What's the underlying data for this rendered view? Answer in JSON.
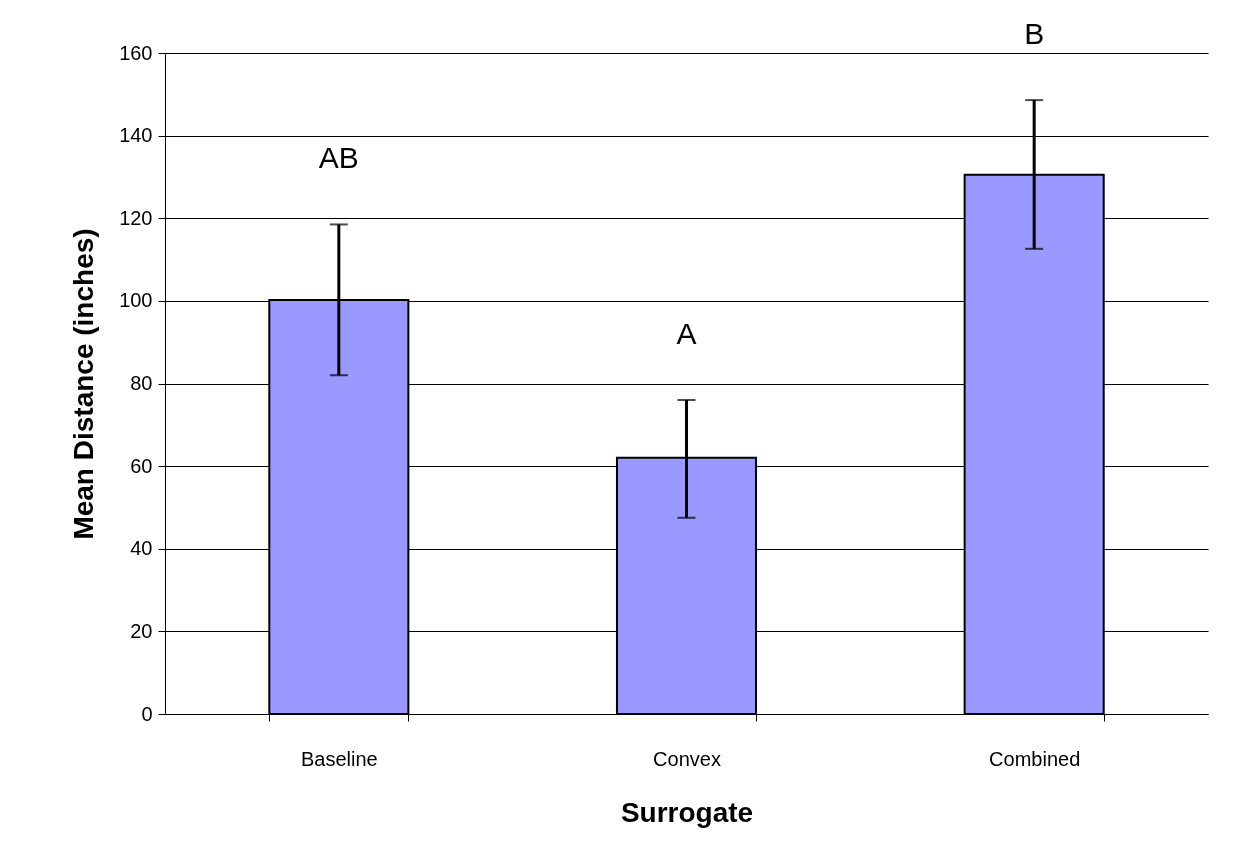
{
  "chart_data": {
    "type": "bar",
    "xlabel": "Surrogate",
    "ylabel": "Mean Distance (inches)",
    "categories": [
      "Baseline",
      "Convex",
      "Combined"
    ],
    "values": [
      100.2,
      62,
      130.5
    ],
    "color": "#9999ff",
    "errors": [
      [
        82,
        118.5
      ],
      [
        47.5,
        76
      ],
      [
        112.6,
        148.6
      ]
    ],
    "ylim": [
      0,
      160
    ],
    "yticks": [
      0,
      20,
      40,
      60,
      80,
      100,
      120,
      140,
      160
    ],
    "grid": "y",
    "annotations": [
      "AB",
      "A",
      "B"
    ]
  }
}
